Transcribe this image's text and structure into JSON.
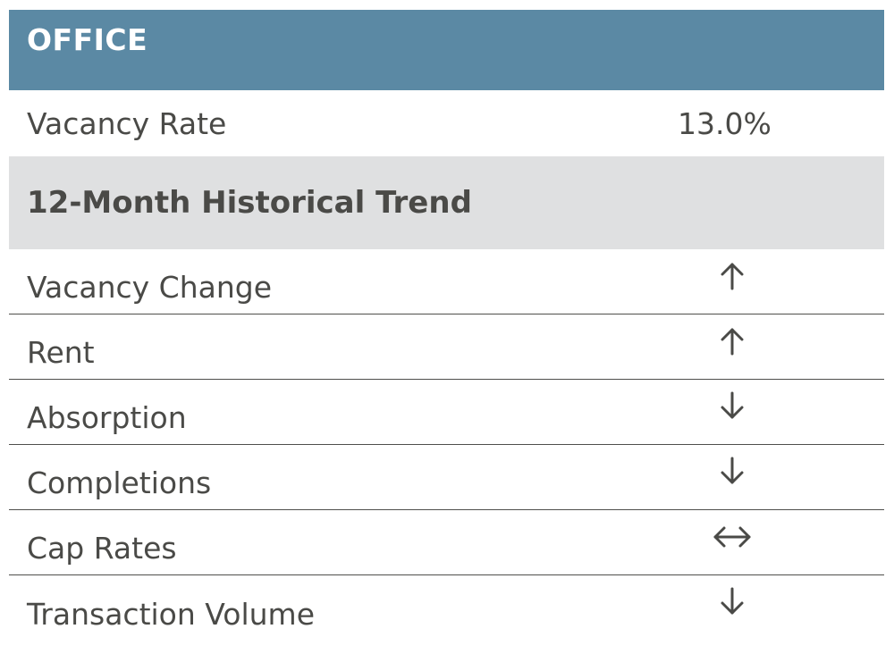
{
  "header": {
    "title": "OFFICE"
  },
  "vacancy": {
    "label": "Vacancy Rate",
    "value": "13.0%"
  },
  "trend_section": {
    "title": "12-Month Historical Trend",
    "rows": [
      {
        "label": "Vacancy Change",
        "direction": "up",
        "icon": "arrow-up-icon"
      },
      {
        "label": "Rent",
        "direction": "up",
        "icon": "arrow-up-icon"
      },
      {
        "label": "Absorption",
        "direction": "down",
        "icon": "arrow-down-icon"
      },
      {
        "label": "Completions",
        "direction": "down",
        "icon": "arrow-down-icon"
      },
      {
        "label": "Cap Rates",
        "direction": "flat",
        "icon": "arrow-left-right-icon"
      },
      {
        "label": "Transaction Volume",
        "direction": "down",
        "icon": "arrow-down-icon"
      }
    ]
  },
  "colors": {
    "header_bg": "#5b89a4",
    "subheader_bg": "#dfe0e1",
    "text": "#4a4a47",
    "divider": "#4f4f4c"
  }
}
